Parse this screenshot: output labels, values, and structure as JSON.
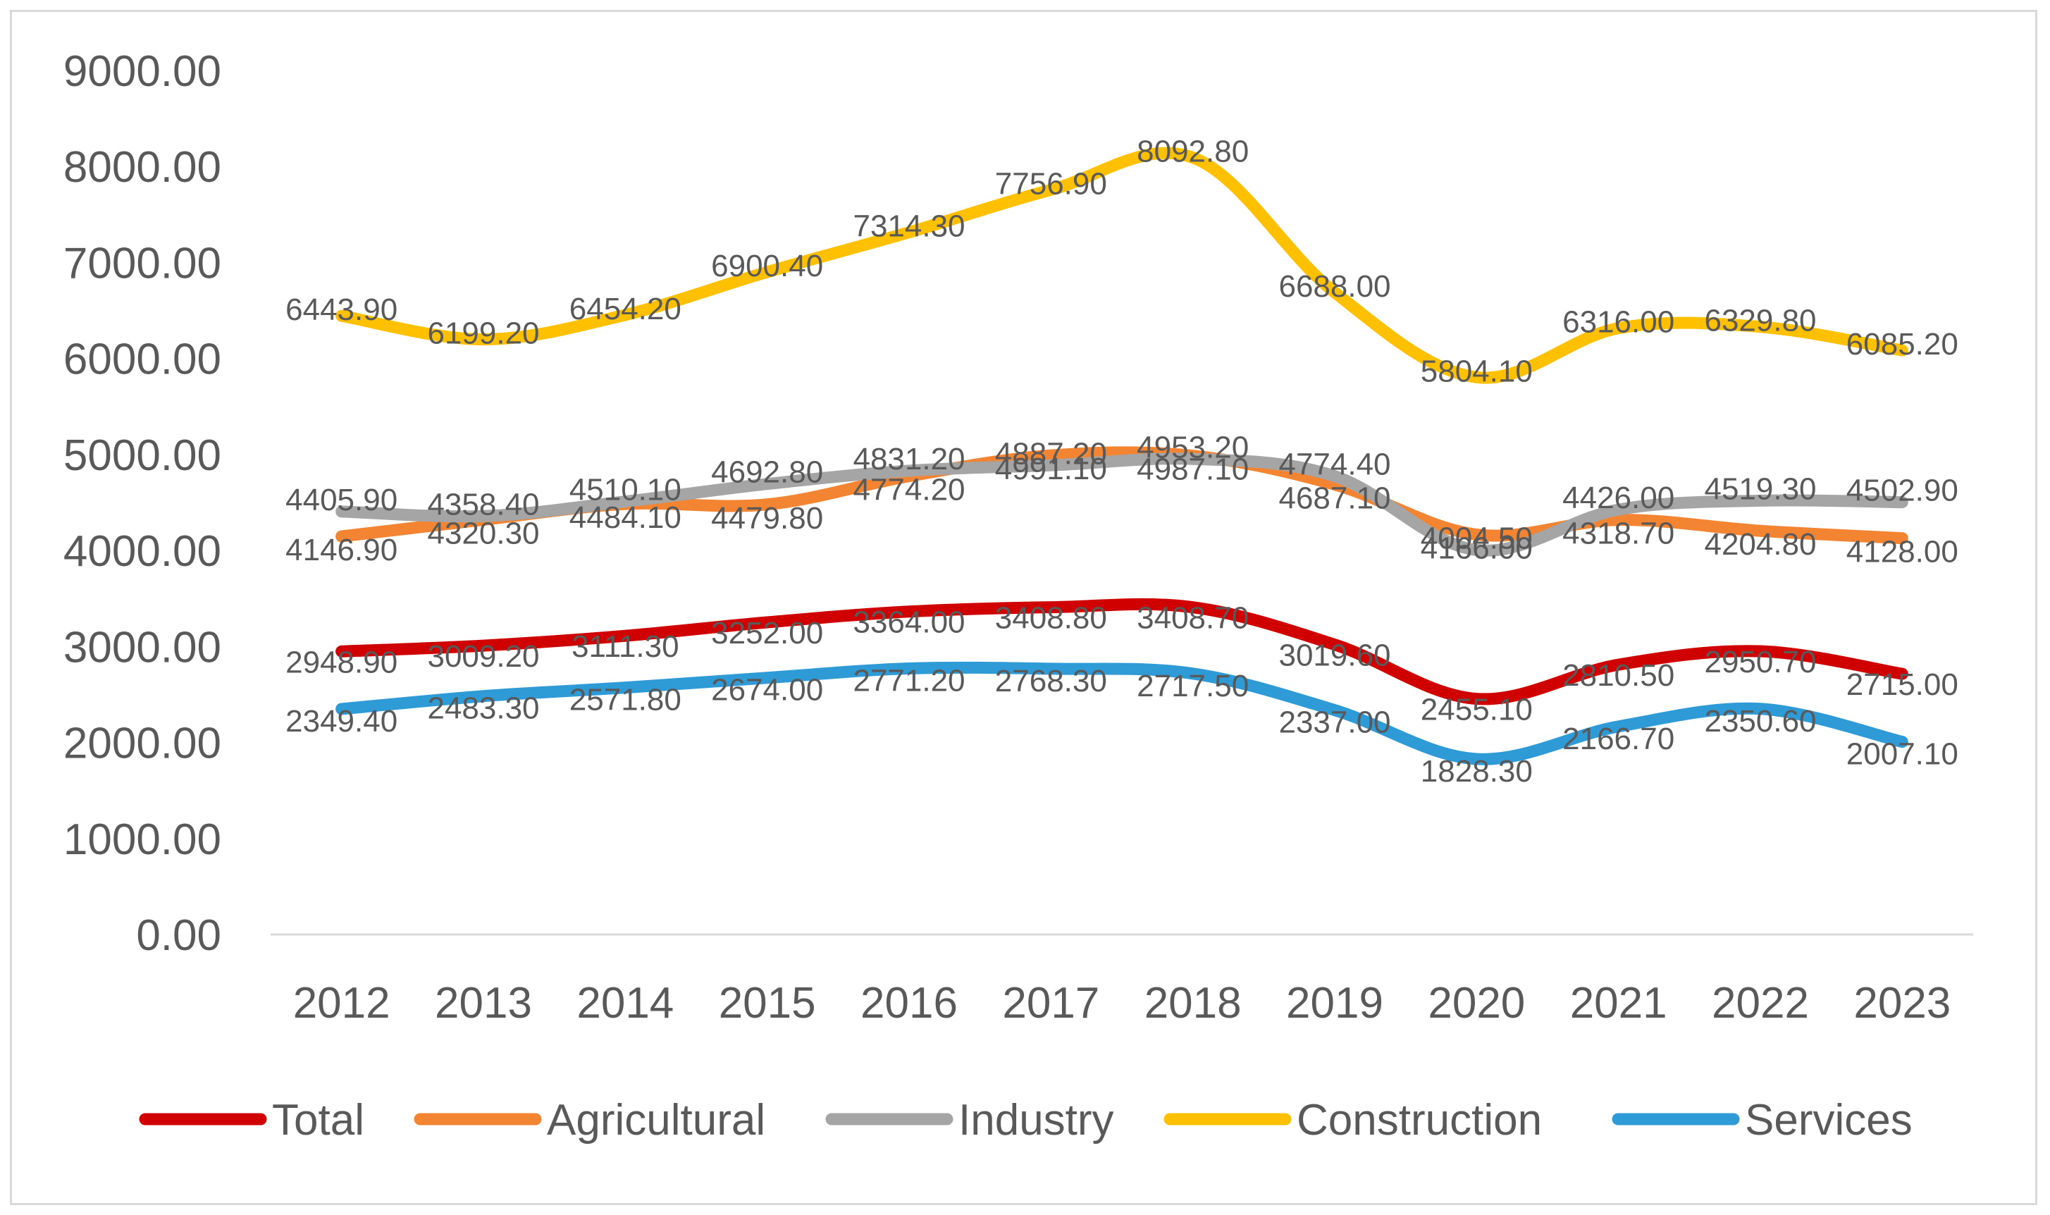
{
  "chart_data": {
    "type": "line",
    "title": "",
    "xlabel": "",
    "ylabel": "",
    "categories": [
      "2012",
      "2013",
      "2014",
      "2015",
      "2016",
      "2017",
      "2018",
      "2019",
      "2020",
      "2021",
      "2022",
      "2023"
    ],
    "ylim": [
      0,
      9000
    ],
    "yticks": [
      "0.00",
      "1000.00",
      "2000.00",
      "3000.00",
      "4000.00",
      "5000.00",
      "6000.00",
      "7000.00",
      "8000.00",
      "9000.00"
    ],
    "grid": false,
    "legend": "bottom",
    "series": [
      {
        "name": "Total",
        "color": "#d00000",
        "values": [
          2948.9,
          3009.2,
          3111.3,
          3252.0,
          3364.0,
          3408.8,
          3408.7,
          3019.6,
          2455.1,
          2810.5,
          2950.7,
          2715.0
        ],
        "labels": [
          "2948.90",
          "3009.20",
          "3111.30",
          "3252.00",
          "3364.00",
          "3408.80",
          "3408.70",
          "3019.60",
          "2455.10",
          "2810.50",
          "2950.70",
          "2715.00"
        ]
      },
      {
        "name": "Agricultural",
        "color": "#f28432",
        "values": [
          4146.9,
          4320.3,
          4484.1,
          4479.8,
          4774.2,
          4991.1,
          4987.1,
          4687.1,
          4166.0,
          4318.7,
          4204.8,
          4128.0
        ],
        "labels": [
          "4146.90",
          "4320.30",
          "4484.10",
          "4479.80",
          "4774.20",
          "4991.10",
          "4987.10",
          "4687.10",
          "4166.00",
          "4318.70",
          "4204.80",
          "4128.00"
        ]
      },
      {
        "name": "Industry",
        "color": "#a5a5a5",
        "values": [
          4405.9,
          4358.4,
          4510.1,
          4692.8,
          4831.2,
          4887.2,
          4953.2,
          4774.4,
          4004.5,
          4426.0,
          4519.3,
          4502.9
        ],
        "labels": [
          "4405.90",
          "4358.40",
          "4510.10",
          "4692.80",
          "4831.20",
          "4887.20",
          "4953.20",
          "4774.40",
          "4004.50",
          "4426.00",
          "4519.30",
          "4502.90"
        ]
      },
      {
        "name": "Construction",
        "color": "#ffc000",
        "values": [
          6443.9,
          6199.2,
          6454.2,
          6900.4,
          7314.3,
          7756.9,
          8092.8,
          6688.0,
          5804.1,
          6316.0,
          6329.8,
          6085.2
        ],
        "labels": [
          "6443.90",
          "6199.20",
          "6454.20",
          "6900.40",
          "7314.30",
          "7756.90",
          "8092.80",
          "6688.00",
          "5804.10",
          "6316.00",
          "6329.80",
          "6085.20"
        ]
      },
      {
        "name": "Services",
        "color": "#2e9ad6",
        "values": [
          2349.4,
          2483.3,
          2571.8,
          2674.0,
          2771.2,
          2768.3,
          2717.5,
          2337.0,
          1828.3,
          2166.7,
          2350.6,
          2007.1
        ],
        "labels": [
          "2349.40",
          "2483.30",
          "2571.80",
          "2674.00",
          "2771.20",
          "2768.30",
          "2717.50",
          "2337.00",
          "1828.30",
          "2166.70",
          "2350.60",
          "2007.10"
        ]
      }
    ]
  }
}
